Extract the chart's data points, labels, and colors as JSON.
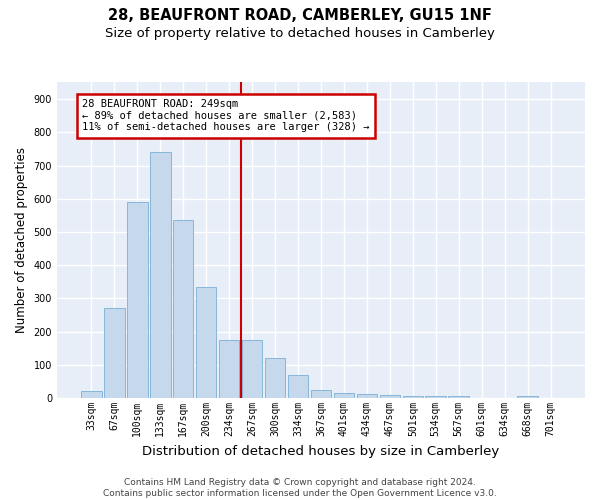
{
  "title_line1": "28, BEAUFRONT ROAD, CAMBERLEY, GU15 1NF",
  "title_line2": "Size of property relative to detached houses in Camberley",
  "xlabel": "Distribution of detached houses by size in Camberley",
  "ylabel": "Number of detached properties",
  "categories": [
    "33sqm",
    "67sqm",
    "100sqm",
    "133sqm",
    "167sqm",
    "200sqm",
    "234sqm",
    "267sqm",
    "300sqm",
    "334sqm",
    "367sqm",
    "401sqm",
    "434sqm",
    "467sqm",
    "501sqm",
    "534sqm",
    "567sqm",
    "601sqm",
    "634sqm",
    "668sqm",
    "701sqm"
  ],
  "values": [
    20,
    270,
    590,
    740,
    535,
    335,
    175,
    175,
    120,
    70,
    25,
    15,
    12,
    8,
    5,
    5,
    5,
    0,
    0,
    5,
    0
  ],
  "bar_color": "#c5d8ec",
  "bar_edge_color": "#7aafd4",
  "vline_x": 6.5,
  "vline_color": "#cc0000",
  "annotation_box_text": "28 BEAUFRONT ROAD: 249sqm\n← 89% of detached houses are smaller (2,583)\n11% of semi-detached houses are larger (328) →",
  "annotation_box_color": "#cc0000",
  "annotation_box_fill": "#ffffff",
  "footnote": "Contains HM Land Registry data © Crown copyright and database right 2024.\nContains public sector information licensed under the Open Government Licence v3.0.",
  "ylim": [
    0,
    950
  ],
  "yticks": [
    0,
    100,
    200,
    300,
    400,
    500,
    600,
    700,
    800,
    900
  ],
  "background_color": "#e8eef8",
  "grid_color": "#ffffff",
  "title_fontsize": 10.5,
  "subtitle_fontsize": 9.5,
  "tick_fontsize": 7,
  "ylabel_fontsize": 8.5,
  "xlabel_fontsize": 9.5,
  "footnote_fontsize": 6.5,
  "annot_fontsize": 7.5
}
